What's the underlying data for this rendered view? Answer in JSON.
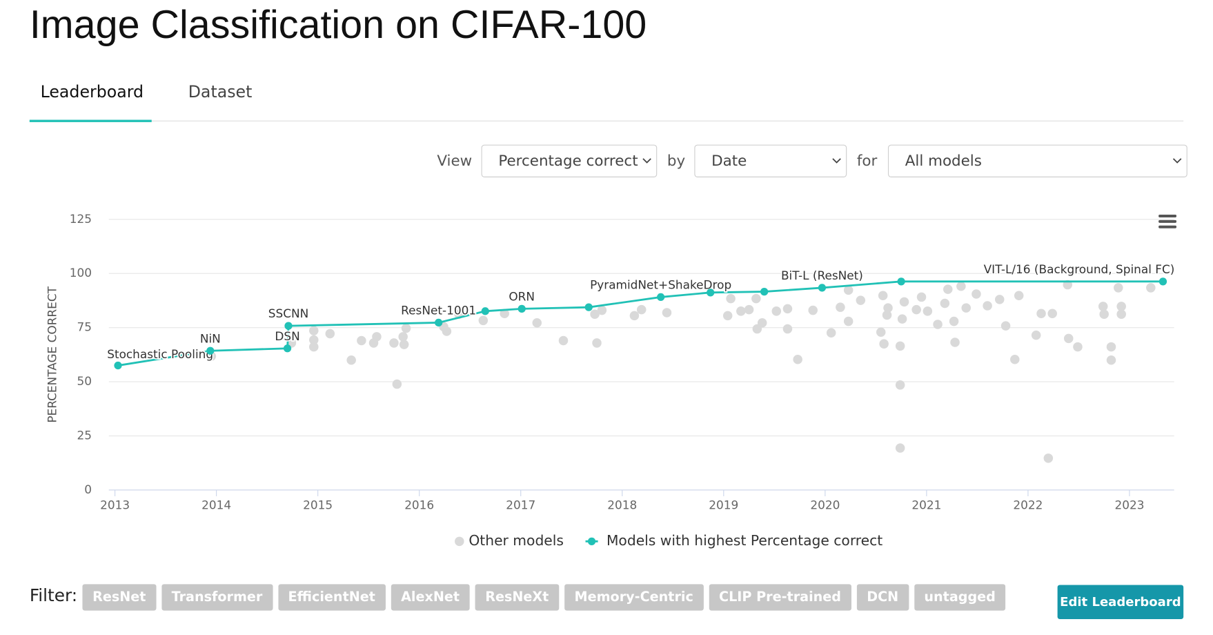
{
  "header": {
    "title": "Image Classification on CIFAR-100"
  },
  "tabs": [
    "Leaderboard",
    "Dataset"
  ],
  "controls": {
    "view_label": "View",
    "view": "Percentage correct",
    "by_label": "by",
    "by": "Date",
    "for_label": "for",
    "for": "All models"
  },
  "chart_data": {
    "type": "line",
    "y_label": "PERCENTAGE CORRECT",
    "xlim": [
      2012.94,
      2023.44
    ],
    "xticks": [
      2013,
      2014,
      2015,
      2016,
      2017,
      2018,
      2019,
      2020,
      2021,
      2022,
      2023
    ],
    "ylim": [
      0,
      125
    ],
    "yticks": [
      0,
      25,
      50,
      75,
      100,
      125
    ],
    "grid": true,
    "legend": "bottom",
    "series": [
      {
        "name": "Other models",
        "color": "#d9d9d9",
        "type": "scatter",
        "x": [
          2013.95,
          2014.74,
          2014.96,
          2014.96,
          2014.96,
          2015.12,
          2015.33,
          2015.43,
          2015.55,
          2015.58,
          2015.75,
          2015.78,
          2015.84,
          2015.85,
          2015.87,
          2016.24,
          2016.27,
          2016.39,
          2016.63,
          2016.84,
          2017.16,
          2017.42,
          2017.73,
          2017.75,
          2017.8,
          2018.12,
          2018.19,
          2018.44,
          2019.04,
          2019.07,
          2019.17,
          2019.25,
          2019.32,
          2019.33,
          2019.38,
          2019.52,
          2019.63,
          2019.63,
          2019.73,
          2019.88,
          2020.06,
          2020.15,
          2020.23,
          2020.23,
          2020.35,
          2020.55,
          2020.57,
          2020.58,
          2020.61,
          2020.62,
          2020.74,
          2020.74,
          2020.74,
          2020.76,
          2020.78,
          2020.9,
          2020.95,
          2021.01,
          2021.11,
          2021.18,
          2021.21,
          2021.27,
          2021.28,
          2021.34,
          2021.39,
          2021.49,
          2021.6,
          2021.72,
          2021.78,
          2021.87,
          2021.91,
          2022.08,
          2022.13,
          2022.2,
          2022.24,
          2022.39,
          2022.4,
          2022.49,
          2022.74,
          2022.75,
          2022.82,
          2022.82,
          2022.89,
          2022.92,
          2022.92,
          2023.21
        ],
        "values": [
          61.8,
          67.9,
          73.6,
          69.3,
          66.1,
          72.2,
          60.0,
          69.0,
          67.9,
          70.8,
          67.9,
          48.9,
          70.8,
          67.2,
          74.7,
          75.4,
          73.3,
          81.2,
          78.3,
          81.5,
          77.2,
          69.0,
          81.2,
          67.9,
          83.0,
          80.5,
          83.3,
          81.9,
          80.5,
          88.4,
          82.6,
          83.3,
          88.4,
          74.4,
          77.2,
          82.6,
          83.7,
          74.4,
          60.3,
          83.0,
          72.6,
          84.4,
          92.3,
          77.9,
          87.6,
          72.9,
          89.8,
          67.5,
          80.8,
          84.1,
          66.5,
          48.5,
          19.4,
          79.0,
          86.9,
          83.3,
          89.1,
          82.6,
          76.5,
          86.2,
          92.7,
          77.9,
          68.2,
          94.1,
          84.1,
          90.5,
          85.1,
          88.0,
          75.8,
          60.3,
          89.8,
          71.5,
          81.5,
          14.7,
          81.5,
          94.8,
          70.0,
          66.1,
          84.8,
          81.2,
          66.1,
          60.0,
          93.4,
          84.8,
          81.2,
          93.4
        ]
      },
      {
        "name": "Models with highest Percentage correct",
        "color": "#21c1b6",
        "type": "line",
        "x": [
          2013.03,
          2013.94,
          2014.7,
          2014.71,
          2016.19,
          2016.65,
          2017.01,
          2017.67,
          2018.38,
          2018.87,
          2019.4,
          2019.97,
          2020.75,
          2023.33
        ],
        "values": [
          57.5,
          64.3,
          65.4,
          75.8,
          77.3,
          82.6,
          83.7,
          84.4,
          89.1,
          91.2,
          91.6,
          93.4,
          96.3,
          96.3
        ],
        "labels": [
          "Stochastic Pooling",
          "NiN",
          "DSN",
          "SSCNN",
          "ResNet-1001",
          null,
          "ORN",
          null,
          "PyramidNet+ShakeDrop",
          null,
          null,
          "BiT-L (ResNet)",
          null,
          "VIT-L/16 (Background, Spinal FC)"
        ]
      }
    ]
  },
  "filter": {
    "label": "Filter:",
    "tags": [
      "ResNet",
      "Transformer",
      "EfficientNet",
      "AlexNet",
      "ResNeXt",
      "Memory-Centric",
      "CLIP Pre-trained",
      "DCN",
      "untagged"
    ]
  },
  "button": "Edit Leaderboard"
}
